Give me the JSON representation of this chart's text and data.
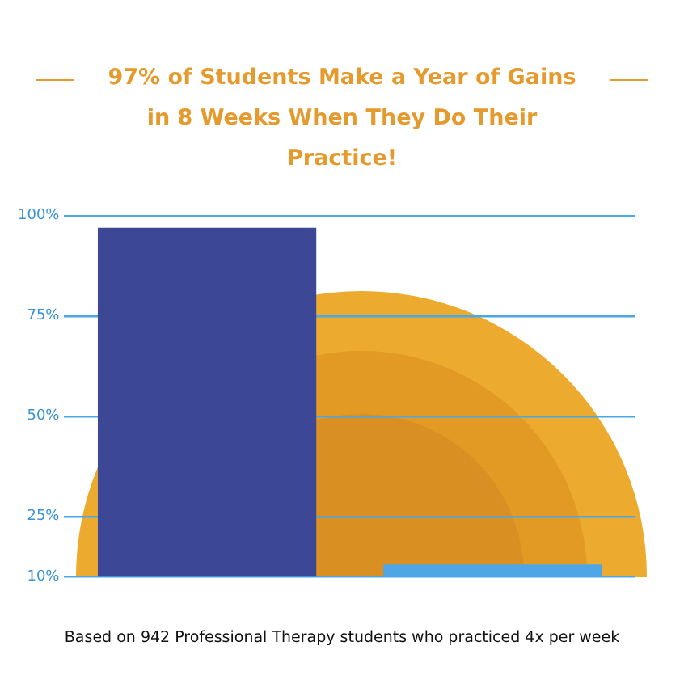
{
  "chart_data": {
    "type": "bar",
    "title": "97% of Students Make a Year of Gains in 8 Weeks When They Do Their Practice!",
    "categories": [
      null,
      null
    ],
    "values": [
      97,
      13
    ],
    "colors": [
      "#3c4896",
      "#4fa6e6"
    ],
    "ylim": [
      10,
      100
    ],
    "yticks": [
      {
        "value": 10,
        "label": "10%"
      },
      {
        "value": 25,
        "label": "25%"
      },
      {
        "value": 50,
        "label": "50%"
      },
      {
        "value": 75,
        "label": "75%"
      },
      {
        "value": 100,
        "label": "100%"
      }
    ],
    "grid": "y",
    "annotations": [
      "Based on 942 Professional Therapy students who practiced 4x per week"
    ]
  }
}
